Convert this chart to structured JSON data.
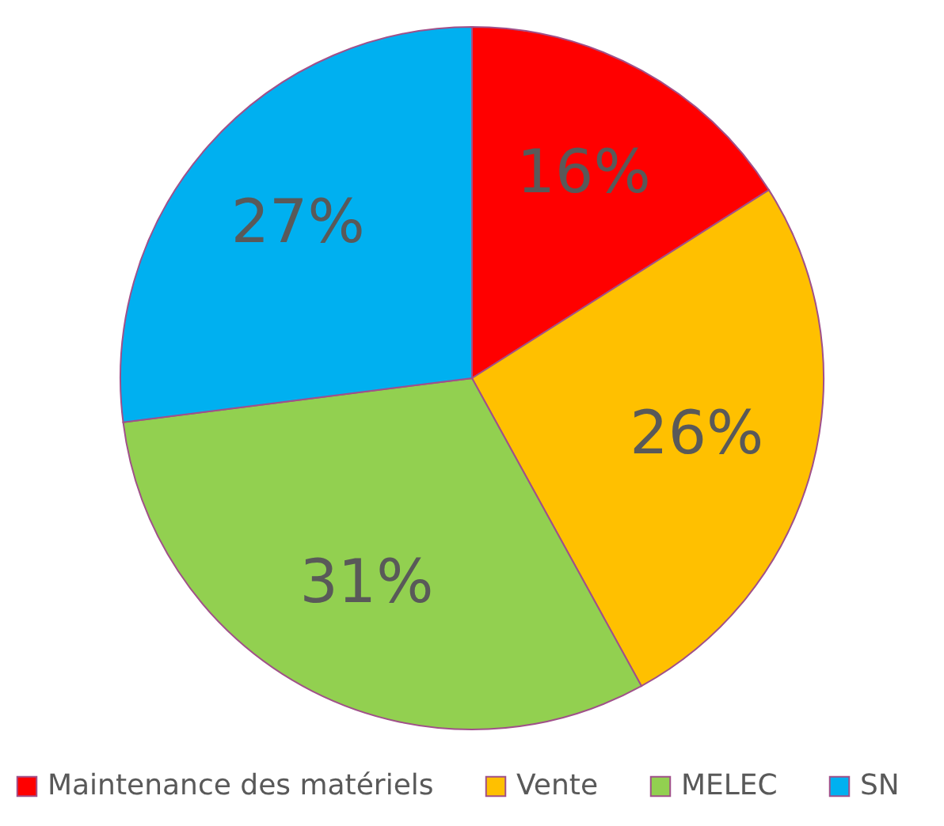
{
  "chart_data": {
    "type": "pie",
    "categories": [
      "Maintenance des matériels",
      "Vente",
      "MELEC",
      "SN"
    ],
    "values": [
      16,
      26,
      31,
      27
    ],
    "value_labels": [
      "16%",
      "26%",
      "31%",
      "27%"
    ],
    "colors": [
      "#ff0000",
      "#ffc000",
      "#92d050",
      "#00b0f0"
    ],
    "legend": "bottom"
  }
}
